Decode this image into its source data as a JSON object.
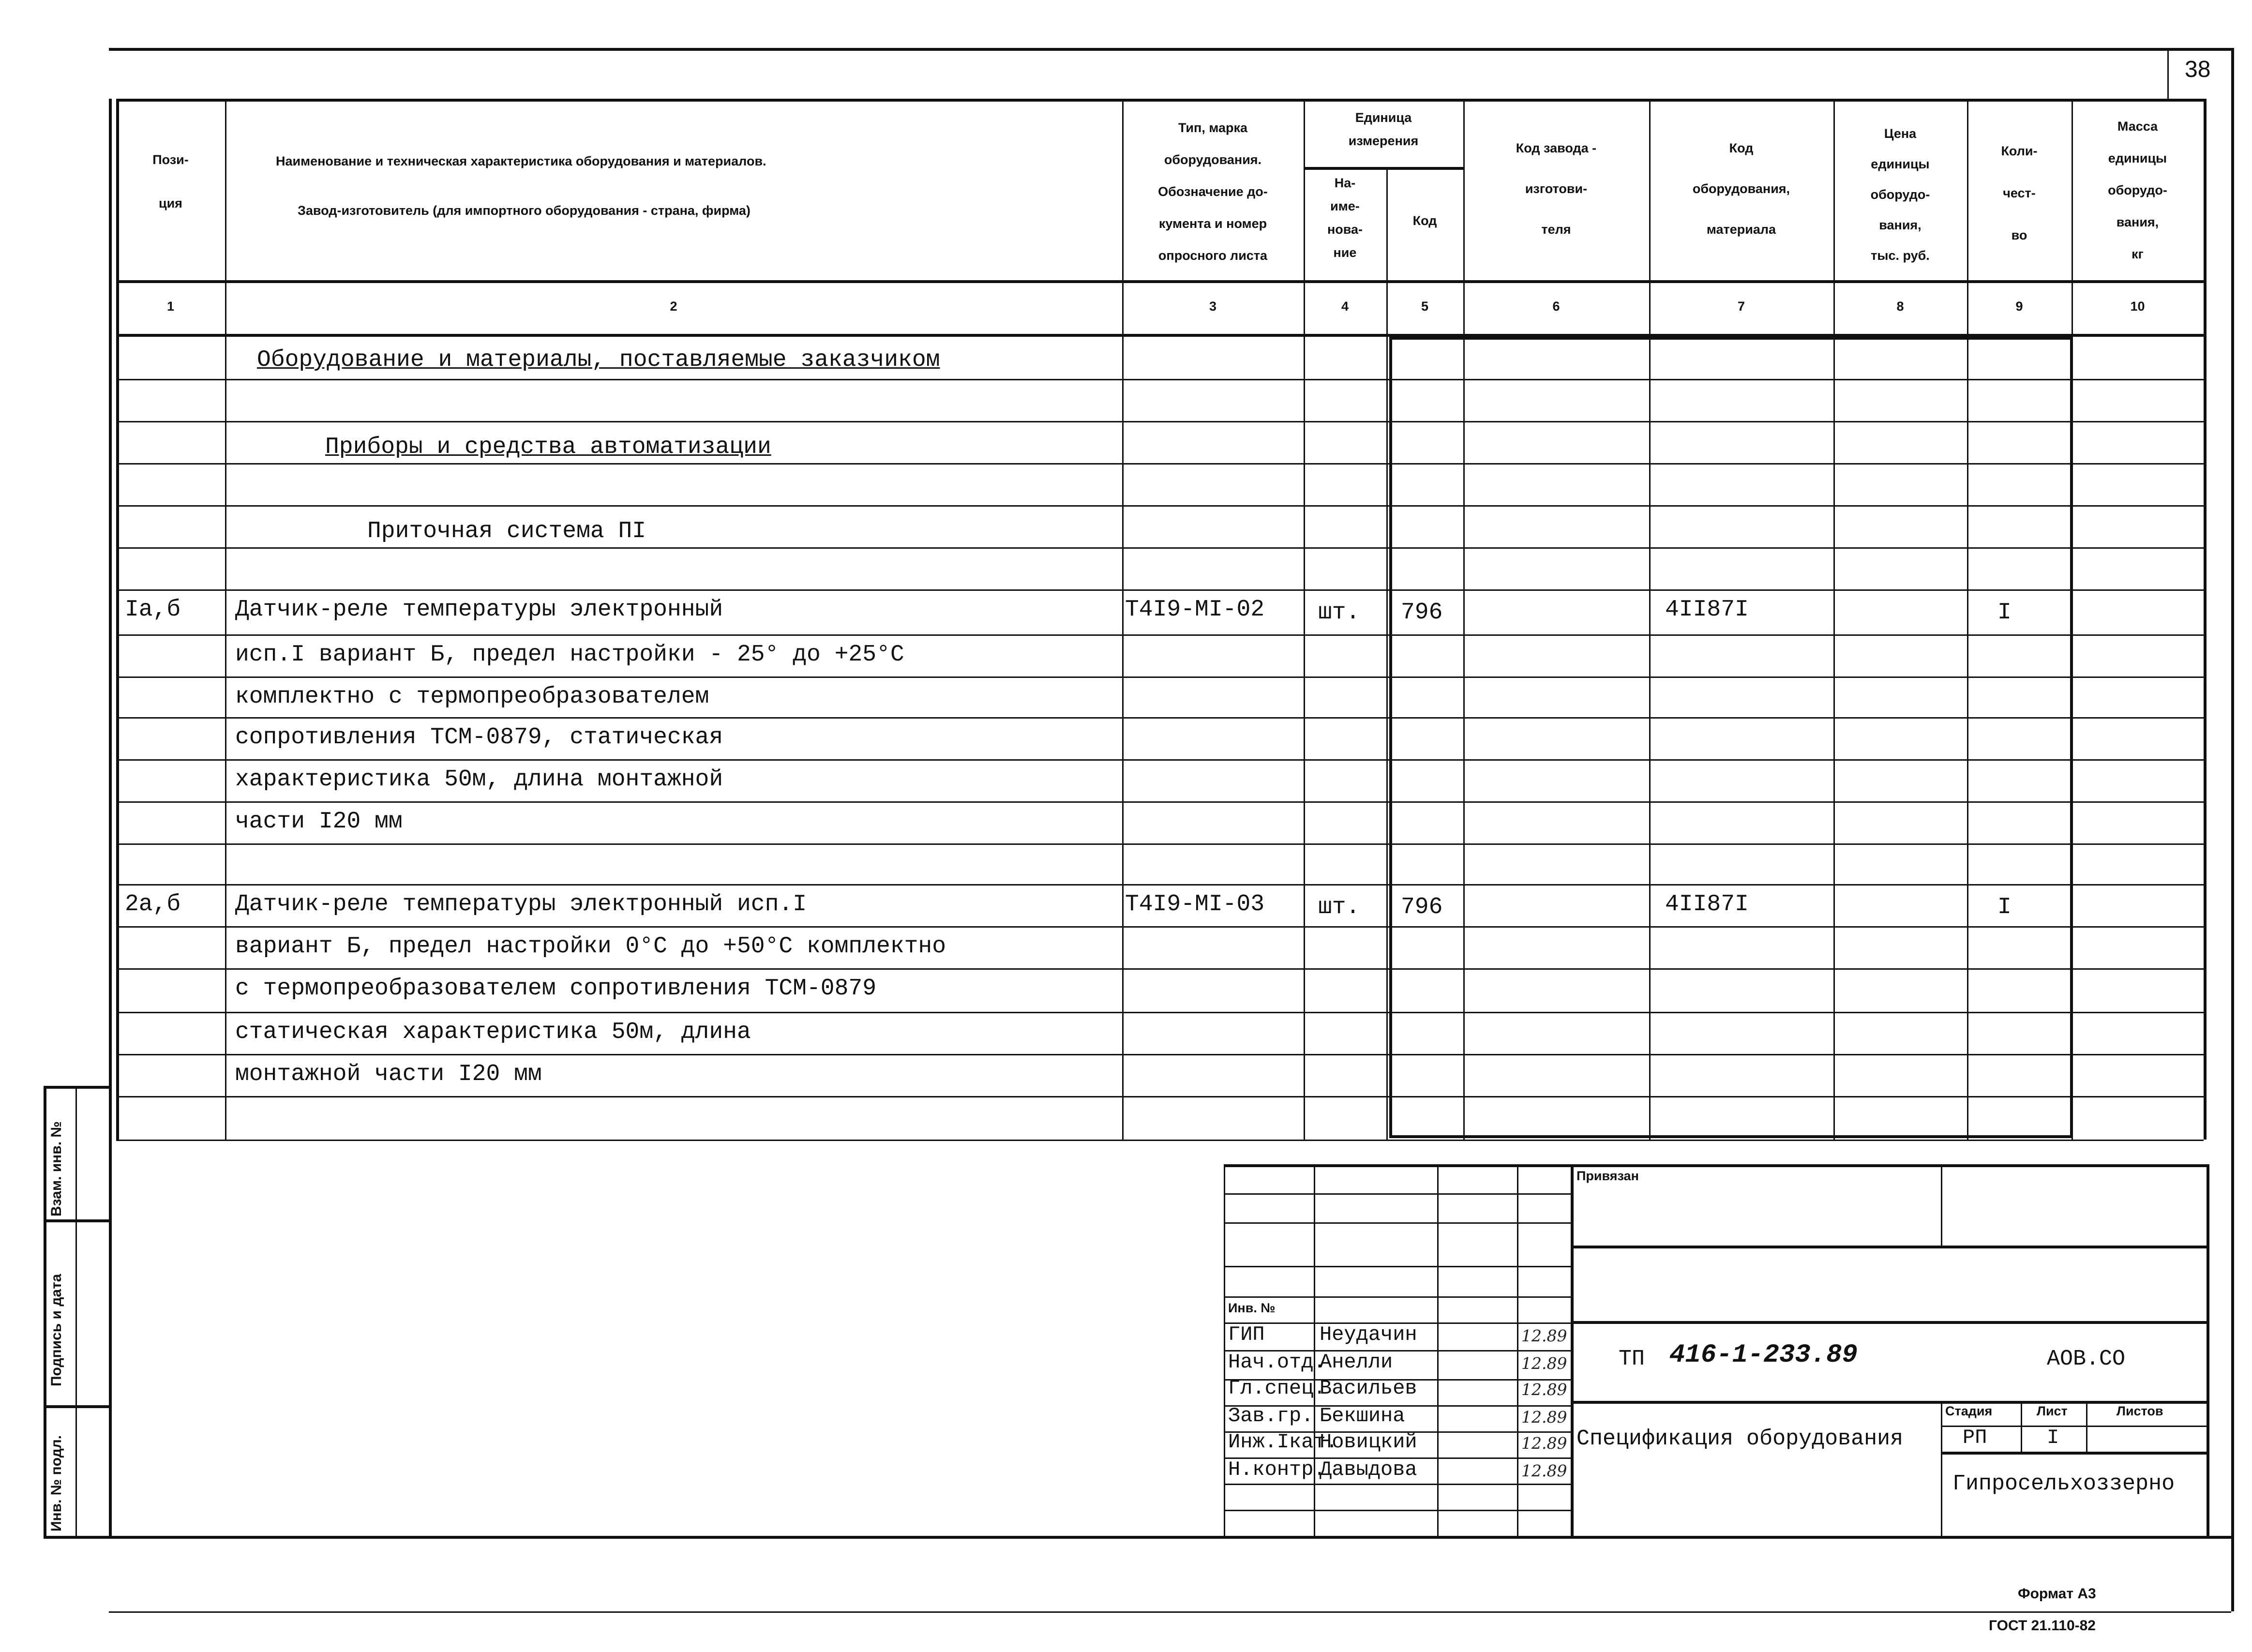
{
  "sheet_number": "38",
  "header": {
    "col1": [
      "Пози-",
      "ция"
    ],
    "col2": [
      "Наименование и техническая характеристика  оборудования и материалов.",
      "Завод-изготовитель  (для импортного оборудования -  страна, фирма)"
    ],
    "col3": [
      "Тип,   марка",
      "оборудования.",
      "Обозначение  до-",
      "кумента  и  номер",
      "опросного листа"
    ],
    "unit_group": [
      "Единица",
      "измерения"
    ],
    "col4": [
      "На-",
      "име-",
      "нова-",
      "ние"
    ],
    "col5": [
      "Код"
    ],
    "col6": [
      "Код  завода -",
      "изготови-",
      "теля"
    ],
    "col7": [
      "Код",
      "оборудования,",
      "материала"
    ],
    "col8": [
      "Цена",
      "единицы",
      "оборудо-",
      "вания,",
      "тыс. руб."
    ],
    "col9": [
      "Коли-",
      "чест-",
      "во"
    ],
    "col10": [
      "Масса",
      "единицы",
      "оборудо-",
      "вания,",
      "кг"
    ],
    "numbers": [
      "1",
      "2",
      "3",
      "4",
      "5",
      "6",
      "7",
      "8",
      "9",
      "10"
    ]
  },
  "rows": [
    {
      "name": "Оборудование и материалы, поставляемые заказчиком",
      "style": "section"
    },
    {},
    {
      "name": "Приборы и средства автоматизации",
      "style": "subsection"
    },
    {},
    {
      "name": "Приточная система ПI",
      "style": "system"
    },
    {},
    {
      "pos": "Iа,б",
      "name": "Датчик-реле температуры электронный",
      "type": "Т4I9-МI-02",
      "unit": "шт.",
      "unit_code": "796",
      "equip_code": "4II87I",
      "qty": "I"
    },
    {
      "name": "исп.I вариант Б, предел настройки - 25° до +25°С"
    },
    {
      "name": "комплектно с термопреобразователем"
    },
    {
      "name": "сопротивления ТСМ-0879, статическая"
    },
    {
      "name": "характеристика 50м, длина монтажной"
    },
    {
      "name": "части I20 мм"
    },
    {},
    {
      "pos": "2а,б",
      "name": "Датчик-реле температуры электронный исп.I",
      "type": "Т4I9-МI-03",
      "unit": "шт.",
      "unit_code": "796",
      "equip_code": "4II87I",
      "qty": "I"
    },
    {
      "name": "вариант Б, предел настройки 0°С до +50°С комплектно"
    },
    {
      "name": "с термопреобразователем сопротивления ТСМ-0879"
    },
    {
      "name": "статическая характеристика 50м, длина"
    },
    {
      "name": "монтажной части I20 мм"
    },
    {}
  ],
  "margin_stamp": [
    "Взам. инв. №",
    "Подпись и дата",
    "Инв. № подл."
  ],
  "title_block": {
    "privyazan": "Привязан",
    "inv_no": "Инв. №",
    "signatories": [
      {
        "role": "ГИП",
        "name": "Неудачин",
        "date": "12.89"
      },
      {
        "role": "Нач.отд.",
        "name": "Анелли",
        "date": "12.89"
      },
      {
        "role": "Гл.спец.",
        "name": "Васильев",
        "date": "12.89"
      },
      {
        "role": "Зав.гр.",
        "name": "Бекшина",
        "date": "12.89"
      },
      {
        "role": "Инж.Iкат.",
        "name": "Новицкий",
        "date": "12.89"
      },
      {
        "role": "Н.контр.",
        "name": "Давыдова",
        "date": "12.89"
      }
    ],
    "code_prefix": "ТП",
    "code": "416-1-233.89",
    "mark": "АОВ.СО",
    "doc_name": "Спецификация оборудования",
    "stage_label": "Стадия",
    "sheet_label": "Лист",
    "sheets_label": "Листов",
    "stage": "РП",
    "sheet": "I",
    "organization": "Гипросельхоззерно"
  },
  "format": "Формат А3",
  "gost": "ГОСТ 21.110-82"
}
